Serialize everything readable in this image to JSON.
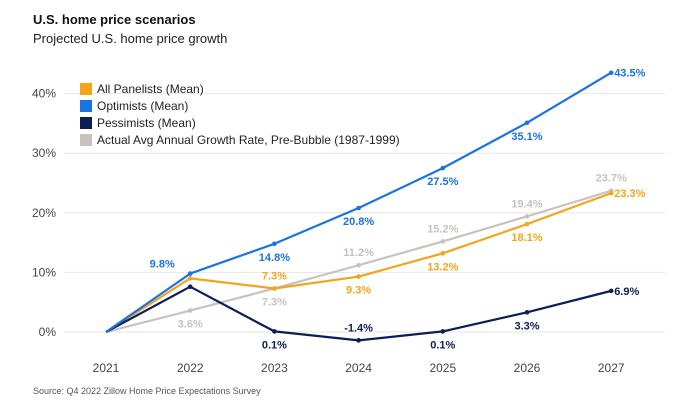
{
  "title": "U.S. home price scenarios",
  "subtitle": "Projected U.S. home price growth",
  "source": "Source: Q4 2022 Zillow Home Price Expectations Survey",
  "chart_data": {
    "type": "line",
    "title": "U.S. home price scenarios",
    "subtitle": "Projected U.S. home price growth",
    "xlabel": "",
    "ylabel": "",
    "categories": [
      "2021",
      "2022",
      "2023",
      "2024",
      "2025",
      "2026",
      "2027"
    ],
    "y_ticks": [
      "0%",
      "10%",
      "20%",
      "30%",
      "40%"
    ],
    "ylim": [
      0,
      45
    ],
    "grid": true,
    "legend_position": "top-left",
    "series": [
      {
        "name": "All Panelists (Mean)",
        "color": "#f2a51a",
        "values": [
          0,
          9.0,
          7.3,
          9.3,
          13.2,
          18.1,
          23.3
        ],
        "labels": [
          "",
          "",
          "7.3%",
          "9.3%",
          "13.2%",
          "18.1%",
          "23.3%"
        ],
        "label_pos": [
          "",
          "",
          "above",
          "below",
          "below",
          "below",
          "right"
        ]
      },
      {
        "name": "Optimists (Mean)",
        "color": "#1a73e0",
        "values": [
          0,
          9.8,
          14.8,
          20.8,
          27.5,
          35.1,
          43.5
        ],
        "labels": [
          "",
          "9.8%",
          "14.8%",
          "20.8%",
          "27.5%",
          "35.1%",
          "43.5%"
        ],
        "label_pos": [
          "",
          "left",
          "below",
          "below",
          "below",
          "below",
          "right"
        ]
      },
      {
        "name": "Pessimists (Mean)",
        "color": "#0c1d57",
        "values": [
          0,
          7.6,
          0.1,
          -1.4,
          0.1,
          3.3,
          6.9
        ],
        "labels": [
          "",
          "",
          "0.1%",
          "-1.4%",
          "0.1%",
          "3.3%",
          "6.9%"
        ],
        "label_pos": [
          "",
          "",
          "below",
          "above",
          "below",
          "below",
          "right"
        ]
      },
      {
        "name": "Actual Avg Annual Growth Rate, Pre-Bubble (1987-1999)",
        "color": "#c9c2bb",
        "values": [
          0,
          3.6,
          7.3,
          11.2,
          15.2,
          19.4,
          23.7
        ],
        "labels": [
          "",
          "3.6%",
          "7.3%",
          "11.2%",
          "15.2%",
          "19.4%",
          "23.7%"
        ],
        "label_pos": [
          "",
          "below",
          "below",
          "above",
          "above",
          "above",
          "above"
        ]
      }
    ]
  }
}
